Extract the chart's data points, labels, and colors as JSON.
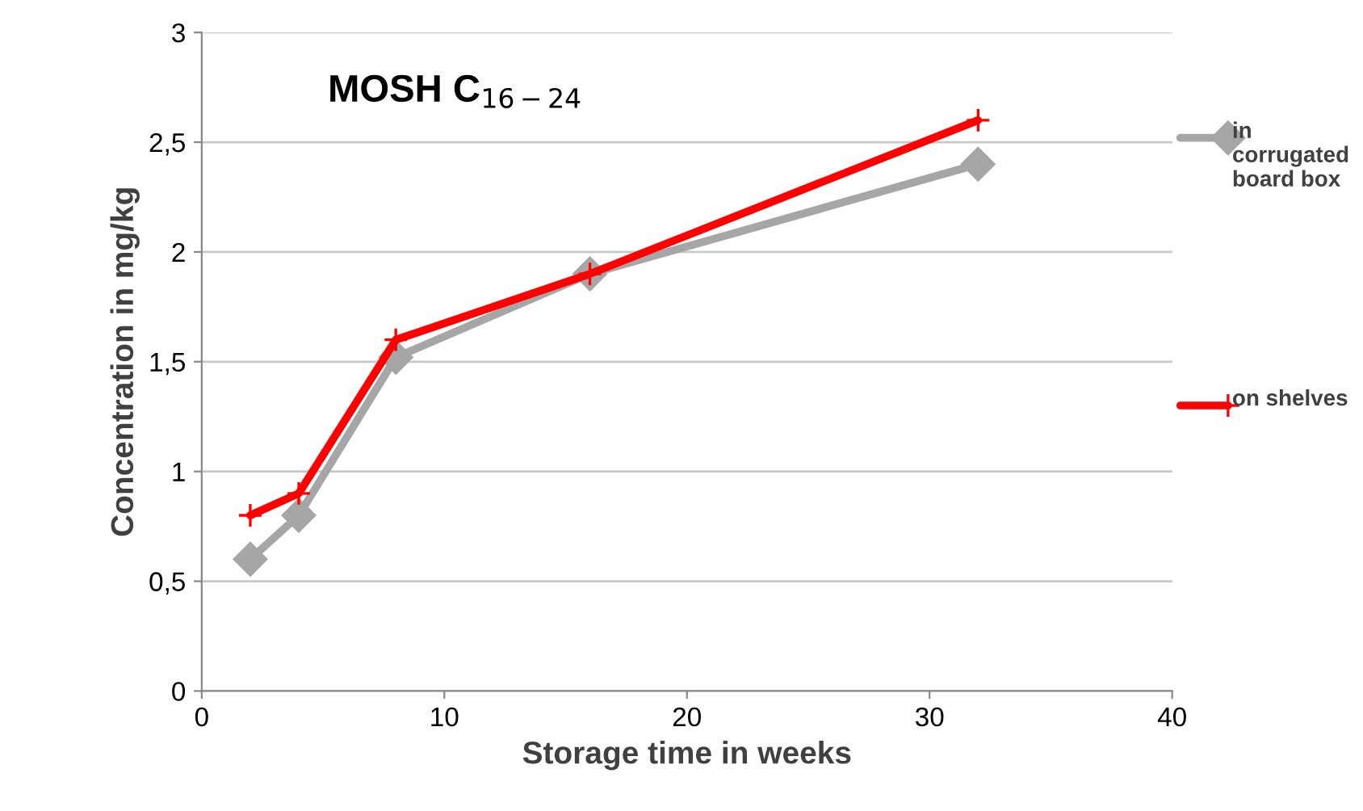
{
  "chart_data": {
    "type": "line",
    "title": "MOSH C$_{16−24}$",
    "xlabel": "Storage time in weeks",
    "ylabel": "Concentration in mg/kg",
    "xlim": [
      0,
      40
    ],
    "xticks": [
      0,
      10,
      20,
      30,
      40
    ],
    "ylim": [
      0,
      3
    ],
    "yticks": [
      0,
      {
        "value": 0.5,
        "label": "0,5"
      },
      1,
      {
        "value": 1.5,
        "label": "1,5"
      },
      2,
      {
        "value": 2.5,
        "label": "2,5"
      },
      3
    ],
    "grid": "y",
    "legend": "right",
    "line_style": "solid",
    "series": [
      {
        "name": "in corrugated board box",
        "color": "#a6a6a6",
        "marker": "diamond",
        "x": [
          2,
          4,
          8,
          16,
          32
        ],
        "values": [
          0.6,
          0.8,
          1.52,
          1.9,
          2.4
        ]
      },
      {
        "name": "on shelves",
        "color": "#ff0000",
        "marker": "cross",
        "x": [
          2,
          4,
          8,
          16,
          32
        ],
        "values": [
          0.8,
          0.9,
          1.6,
          1.9,
          2.6
        ]
      }
    ]
  }
}
